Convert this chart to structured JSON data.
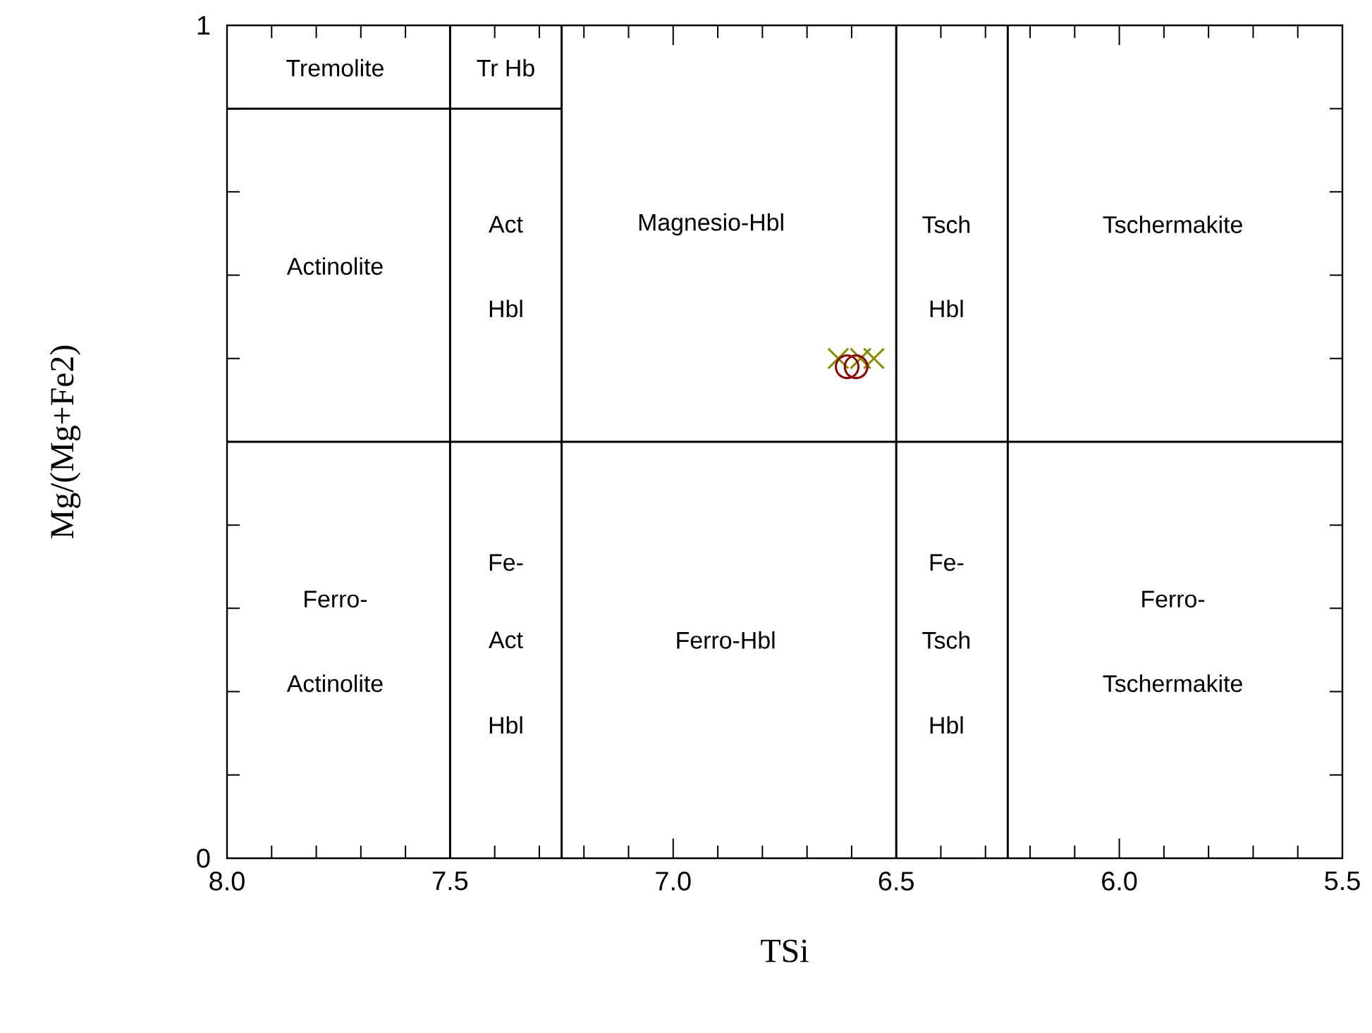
{
  "chart_data": {
    "type": "scatter",
    "xlabel": "TSi",
    "ylabel": "Mg/(Mg+Fe2)",
    "xlim": [
      8.0,
      5.5
    ],
    "ylim": [
      0,
      1
    ],
    "xticks": [
      {
        "value": 8.0,
        "label": "8.0"
      },
      {
        "value": 7.9,
        "label": null
      },
      {
        "value": 7.8,
        "label": null
      },
      {
        "value": 7.7,
        "label": null
      },
      {
        "value": 7.6,
        "label": null
      },
      {
        "value": 7.5,
        "label": "7.5"
      },
      {
        "value": 7.4,
        "label": null
      },
      {
        "value": 7.3,
        "label": null
      },
      {
        "value": 7.2,
        "label": null
      },
      {
        "value": 7.1,
        "label": null
      },
      {
        "value": 7.0,
        "label": "7.0"
      },
      {
        "value": 6.9,
        "label": null
      },
      {
        "value": 6.8,
        "label": null
      },
      {
        "value": 6.7,
        "label": null
      },
      {
        "value": 6.6,
        "label": null
      },
      {
        "value": 6.5,
        "label": "6.5"
      },
      {
        "value": 6.4,
        "label": null
      },
      {
        "value": 6.3,
        "label": null
      },
      {
        "value": 6.2,
        "label": null
      },
      {
        "value": 6.1,
        "label": null
      },
      {
        "value": 6.0,
        "label": "6.0"
      },
      {
        "value": 5.9,
        "label": null
      },
      {
        "value": 5.8,
        "label": null
      },
      {
        "value": 5.7,
        "label": null
      },
      {
        "value": 5.6,
        "label": null
      },
      {
        "value": 5.5,
        "label": "5.5"
      }
    ],
    "yticks": [
      0,
      {
        "value": 0.1,
        "label": null
      },
      {
        "value": 0.2,
        "label": null
      },
      {
        "value": 0.3,
        "label": null
      },
      {
        "value": 0.4,
        "label": null
      },
      {
        "value": 0.5,
        "label": null
      },
      {
        "value": 0.6,
        "label": null
      },
      {
        "value": 0.7,
        "label": null
      },
      {
        "value": 0.8,
        "label": null
      },
      {
        "value": 0.9,
        "label": null
      },
      1
    ],
    "grid": false,
    "series": [
      {
        "type": "line",
        "color": "#000000",
        "marker": "none",
        "x": [
          8.0,
          7.25
        ],
        "values": [
          0.9,
          0.9
        ]
      },
      {
        "color": "#8b8b00",
        "marker": "cross",
        "x": [
          6.63,
          6.58,
          6.55
        ],
        "values": [
          0.6,
          0.6,
          0.6
        ]
      },
      {
        "color": "#8b0000",
        "marker": "circle",
        "x": [
          6.61,
          6.59
        ],
        "values": [
          0.59,
          0.59
        ]
      }
    ],
    "ref_lines": [
      {
        "axis": "x",
        "value": 7.5,
        "color": "#000000"
      },
      {
        "axis": "x",
        "value": 7.25,
        "color": "#000000"
      },
      {
        "axis": "x",
        "value": 6.5,
        "color": "#000000"
      },
      {
        "axis": "x",
        "value": 6.25,
        "color": "#000000"
      },
      {
        "axis": "y",
        "value": 0.5,
        "color": "#000000"
      }
    ],
    "annotations": [
      "Tremolite",
      "Tr Hb",
      "Actinolite",
      "Act",
      "Hbl",
      "Magnesio-Hbl",
      "Tsch",
      "Hbl",
      "Tschermakite",
      "Ferro-",
      "Actinolite",
      "Fe-",
      "Act",
      "Hbl",
      "Ferro-Hbl",
      "Fe-",
      "Tsch",
      "Hbl",
      "Ferro-",
      "Tschermakite"
    ]
  }
}
